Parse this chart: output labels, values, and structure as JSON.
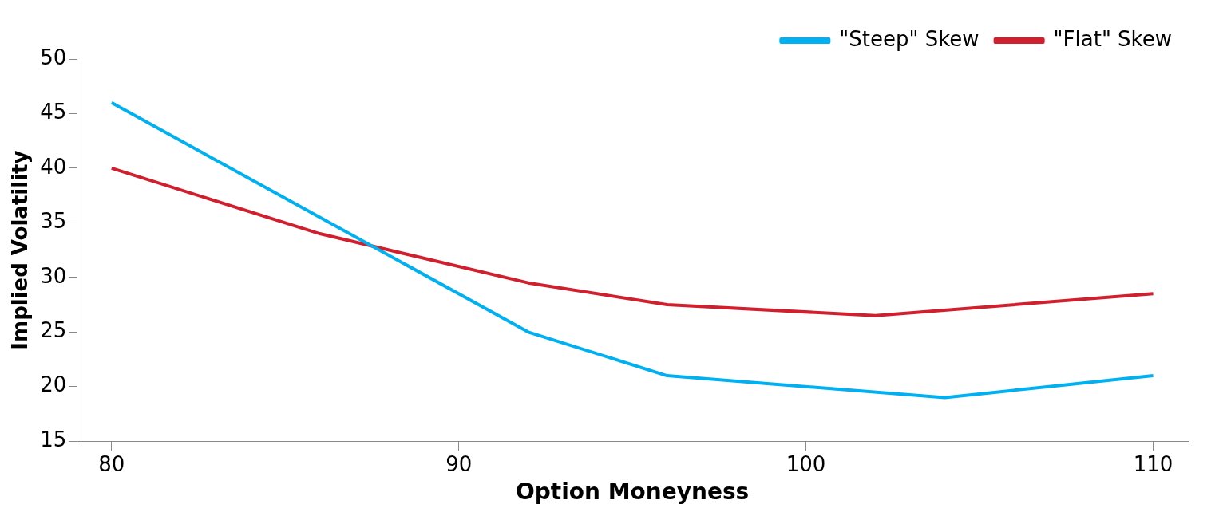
{
  "chart_data": {
    "type": "line",
    "xlabel": "Option Moneyness",
    "ylabel": "Implied Volatility",
    "xlim": [
      79,
      111
    ],
    "xticks": [
      80,
      90,
      100,
      110
    ],
    "ylim": [
      15,
      50
    ],
    "yticks": [
      15,
      20,
      25,
      30,
      35,
      40,
      45,
      50
    ],
    "grid": false,
    "legend": "top right",
    "marker": "none",
    "line_style": "solid",
    "series": [
      {
        "name": "\"Steep\" Skew",
        "color": "#00b0f0",
        "x": [
          80,
          92,
          96,
          104,
          107,
          110
        ],
        "values": [
          46,
          25,
          21,
          19,
          20,
          21
        ]
      },
      {
        "name": "\"Flat\" Skew",
        "color": "#d0202e",
        "x": [
          80,
          86,
          92,
          96,
          102,
          110
        ],
        "values": [
          40,
          34,
          29.5,
          27.5,
          26.5,
          28.5
        ]
      }
    ]
  }
}
